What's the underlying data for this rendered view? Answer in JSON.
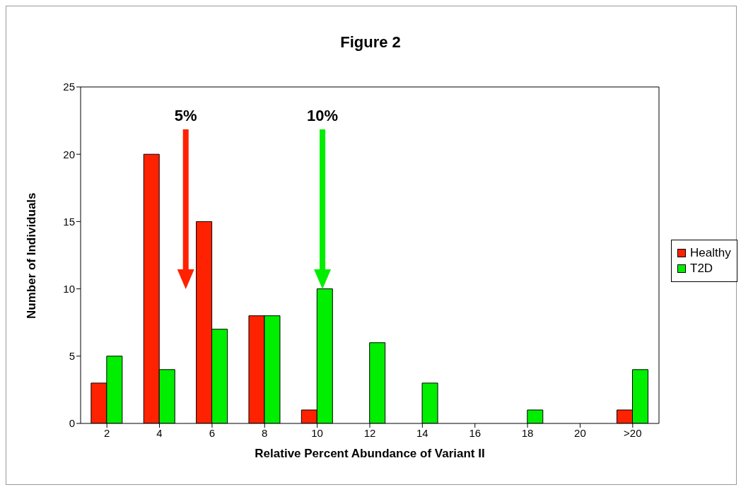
{
  "chart_data": {
    "type": "bar",
    "title": "Figure 2",
    "xlabel": "Relative Percent Abundance of Variant II",
    "ylabel": "Number of Individuals",
    "categories": [
      "2",
      "4",
      "6",
      "8",
      "10",
      "12",
      "14",
      "16",
      "18",
      "20",
      ">20"
    ],
    "series": [
      {
        "name": "Healthy",
        "color": "#ff2200",
        "values": [
          3,
          20,
          15,
          8,
          1,
          0,
          0,
          0,
          0,
          0,
          1
        ]
      },
      {
        "name": "T2D",
        "color": "#00ee00",
        "values": [
          5,
          4,
          7,
          8,
          10,
          6,
          3,
          0,
          1,
          0,
          4
        ]
      }
    ],
    "ylim": [
      0,
      25
    ],
    "yticks": [
      0,
      5,
      10,
      15,
      20,
      25
    ],
    "legend": "right",
    "annotations": [
      "5%",
      "10%"
    ]
  }
}
